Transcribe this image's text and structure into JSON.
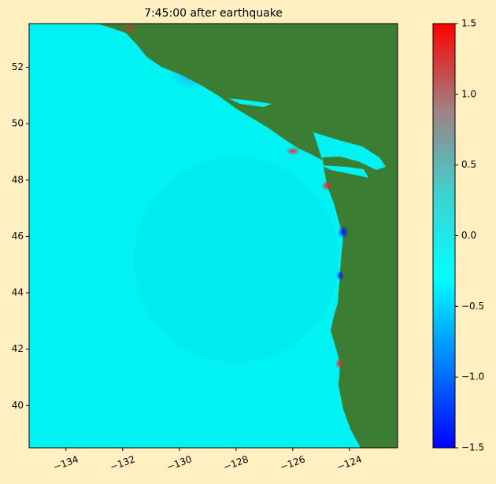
{
  "chart_data": {
    "type": "map",
    "title": "7:45:00 after earthquake",
    "xlim": [
      -135.3,
      -122.3
    ],
    "ylim": [
      38.5,
      53.55
    ],
    "xticks": [
      {
        "value": -134,
        "label": "−134"
      },
      {
        "value": -132,
        "label": "−132"
      },
      {
        "value": -130,
        "label": "−130"
      },
      {
        "value": -128,
        "label": "−128"
      },
      {
        "value": -126,
        "label": "−126"
      },
      {
        "value": -124,
        "label": "−124"
      }
    ],
    "yticks": [
      40,
      42,
      44,
      46,
      48,
      50,
      52
    ],
    "colorbar": {
      "clim": [
        -1.5,
        1.5
      ],
      "ticks": [
        {
          "value": -1.5,
          "label": "−1.5"
        },
        {
          "value": -1,
          "label": "−1.0"
        },
        {
          "value": -0.5,
          "label": "−0.5"
        },
        {
          "value": 0,
          "label": "0.0"
        },
        0.5,
        {
          "value": 1,
          "label": "1.0"
        },
        1.5
      ],
      "colors": [
        "#0000ff",
        "#0080ff",
        "#00ffff",
        "#40d0d0",
        "#a08080",
        "#ff0000"
      ]
    },
    "ocean_color": "#00f2f2",
    "land_color": "#3a7d33"
  }
}
